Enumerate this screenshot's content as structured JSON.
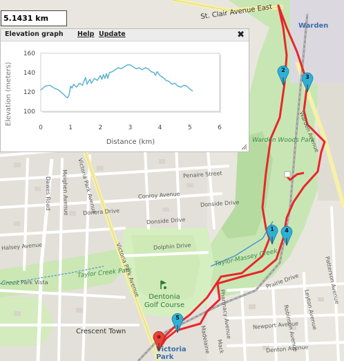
{
  "distance": {
    "value": "5.1431 km"
  },
  "panel": {
    "title": "Elevation graph",
    "help_label": "Help",
    "update_label": "Update",
    "close_glyph": "✖",
    "close_icon": "close-icon",
    "resize_icon": "resize-grip-icon"
  },
  "chart_data": {
    "type": "line",
    "xlabel": "Distance (km)",
    "ylabel": "Elevation (meters)",
    "xlim": [
      0,
      6
    ],
    "ylim": [
      100,
      160
    ],
    "xticks": [
      0,
      1,
      2,
      3,
      4,
      5,
      6
    ],
    "yticks": [
      100,
      120,
      140,
      160
    ],
    "grid": true,
    "series": [
      {
        "color": "#5db3d1",
        "x": [
          0,
          0.15,
          0.3,
          0.45,
          0.6,
          0.75,
          0.85,
          0.9,
          0.95,
          1.0,
          1.05,
          1.1,
          1.2,
          1.3,
          1.4,
          1.5,
          1.55,
          1.6,
          1.65,
          1.7,
          1.8,
          1.9,
          2.0,
          2.05,
          2.1,
          2.15,
          2.2,
          2.25,
          2.3,
          2.4,
          2.5,
          2.6,
          2.7,
          2.8,
          2.9,
          3.0,
          3.1,
          3.2,
          3.3,
          3.4,
          3.5,
          3.6,
          3.7,
          3.8,
          3.85,
          3.9,
          4.0,
          4.1,
          4.2,
          4.3,
          4.4,
          4.5,
          4.6,
          4.7,
          4.8,
          4.9,
          5.0,
          5.1
        ],
        "y": [
          122,
          126,
          127,
          124,
          122,
          118,
          115,
          114,
          117,
          126,
          124,
          128,
          125,
          129,
          127,
          135,
          128,
          131,
          133,
          129,
          134,
          132,
          137,
          133,
          138,
          134,
          139,
          134,
          140,
          141,
          143,
          145,
          144,
          146,
          148,
          148,
          146,
          144,
          145,
          143,
          145,
          144,
          141,
          140,
          137,
          141,
          137,
          135,
          132,
          131,
          128,
          129,
          126,
          125,
          127,
          126,
          123,
          121
        ]
      }
    ]
  },
  "map": {
    "labels": {
      "st_clair": "St. Clair Avenue East",
      "warden": "Warden",
      "warden_avenue": "Warden Avenue",
      "warden_woods_park": "Warden Woods Park",
      "victoria_park_avenue_north": "Victoria Park Avenue",
      "victoria_park_avenue_south": "Victoria Park Avenue",
      "dawes_road": "Dawes Road",
      "meighen_avenue": "Meighen Avenue",
      "donora_drive": "Donora Drive",
      "donside_drive": "Donside Drive",
      "penaire_street": "Penaire Street",
      "conroy_avenue": "Conroy Avenue",
      "dolphin_drive": "Dolphin Drive",
      "taylor_massey_creek": "Taylor-Massey Creek",
      "taylor_creek_park": "Taylor Creek Park",
      "creek": "Creek",
      "park_vista": "Park Vista",
      "halsey_avenue": "Halsey Avenue",
      "dentonia_golf_course": "Dentonia Golf Course",
      "crescent_town": "Crescent Town",
      "victoria_park": "Victoria Park",
      "pharmacy_avenue": "Pharmacy Avenue",
      "newport_avenue": "Newport Avenue",
      "denton_avenue": "Denton Avenue",
      "robinson_avenue": "Robinson Avenue",
      "leyton_avenue": "Leyton Avenue",
      "patterson_avenue": "Patterson Avenue",
      "prairie_drive": "Prairie Drive",
      "mack": "Mack",
      "madelaine": "Madelaine"
    },
    "markers": [
      {
        "label": "1",
        "color": "#2fb0d6"
      },
      {
        "label": "2",
        "color": "#2fb0d6"
      },
      {
        "label": "3",
        "color": "#2fb0d6"
      },
      {
        "label": "4",
        "color": "#2fb0d6"
      },
      {
        "label": "5",
        "color": "#2fb0d6"
      }
    ],
    "start_marker": {
      "color": "#e8433a",
      "icon": "start-pin-icon"
    },
    "route_color": "#e8262b"
  }
}
